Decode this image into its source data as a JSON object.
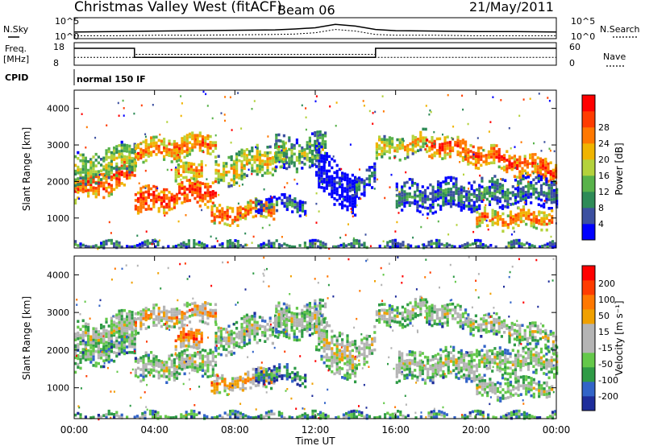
{
  "header": {
    "title": "Christmas Valley West (fitACF)",
    "beam": "Beam 06",
    "date": "21/May/2011"
  },
  "status": {
    "nsky_label": "N.Sky",
    "nsearch_label": "N.Search",
    "freq_label_1": "Freq.",
    "freq_label_2": "[MHz]",
    "nave_label": "Nave",
    "cpid_label": "CPID",
    "cpid_value": "normal 150 IF",
    "noise_ticks": [
      "10^5",
      "10^0"
    ],
    "freq_ticks": [
      18,
      8
    ],
    "nave_ticks": [
      60,
      0
    ]
  },
  "colors": {
    "power": [
      "#0000ff",
      "#3c50a0",
      "#2e8b57",
      "#58b24a",
      "#b4d23c",
      "#f0b400",
      "#ff7800",
      "#ff3c00",
      "#ff0000"
    ],
    "velocity": [
      "#1e2d9b",
      "#3264c8",
      "#2f9b46",
      "#64c84a",
      "#b4b4b4",
      "#b4b4b4",
      "#f0a000",
      "#ff7800",
      "#ff3c00",
      "#ff0000"
    ]
  },
  "chart_data": [
    {
      "type": "line",
      "name": "noise-panel",
      "x": [
        0,
        2,
        4,
        6,
        8,
        10,
        11,
        12,
        13,
        14,
        15,
        16,
        18,
        20,
        22,
        24
      ],
      "series": [
        {
          "name": "N.Sky",
          "values": [
            1.6,
            1.7,
            1.8,
            1.9,
            2.0,
            2.1,
            2.3,
            2.6,
            3.4,
            3.0,
            2.2,
            1.9,
            1.8,
            1.7,
            1.7,
            1.6
          ]
        },
        {
          "name": "N.Search",
          "values": [
            0.7,
            0.7,
            0.8,
            0.8,
            0.9,
            1.0,
            1.1,
            1.4,
            2.2,
            1.8,
            1.0,
            0.8,
            0.8,
            0.7,
            0.7,
            0.7
          ]
        }
      ]
    },
    {
      "type": "line",
      "name": "frequency-panel",
      "x": [
        0,
        3,
        3,
        15,
        15,
        24
      ],
      "series": [
        {
          "name": "Freq.",
          "values": [
            15.5,
            15.5,
            11.5,
            11.5,
            15.5,
            15.5
          ]
        },
        {
          "name": "Nave",
          "values": [
            21,
            21,
            29,
            29,
            21,
            21
          ]
        }
      ]
    },
    {
      "type": "heatmap",
      "name": "power-panel",
      "ylabel": "Slant Range [km]",
      "colorbar_label": "Power [dB]",
      "colorbar_ticks": [
        4,
        8,
        12,
        16,
        20,
        24,
        28
      ],
      "xlim": [
        0,
        24
      ],
      "ylim": [
        180,
        4500
      ],
      "yticks": [
        1000,
        2000,
        3000,
        4000
      ],
      "bands": [
        {
          "t0": 0.0,
          "t1": 3.0,
          "r0": 1800,
          "r1": 2300,
          "dr": 350,
          "level": 0.85
        },
        {
          "t0": 0.0,
          "t1": 3.0,
          "r0": 2300,
          "r1": 2700,
          "dr": 450,
          "level": 0.5
        },
        {
          "t0": 3.0,
          "t1": 7.0,
          "r0": 2850,
          "r1": 3100,
          "dr": 300,
          "level": 0.75
        },
        {
          "t0": 3.0,
          "t1": 7.0,
          "r0": 1500,
          "r1": 1800,
          "dr": 350,
          "level": 0.9
        },
        {
          "t0": 5.0,
          "t1": 6.3,
          "r0": 2250,
          "r1": 2450,
          "dr": 250,
          "level": 0.7
        },
        {
          "t0": 6.8,
          "t1": 10.0,
          "r0": 1050,
          "r1": 1350,
          "dr": 250,
          "level": 0.8
        },
        {
          "t0": 7.0,
          "t1": 10.5,
          "r0": 2300,
          "r1": 2800,
          "dr": 400,
          "level": 0.6
        },
        {
          "t0": 9.0,
          "t1": 11.5,
          "r0": 1450,
          "r1": 1350,
          "dr": 200,
          "level": 0.3
        },
        {
          "t0": 10.0,
          "t1": 12.5,
          "r0": 2800,
          "r1": 2900,
          "dr": 450,
          "level": 0.45
        },
        {
          "t0": 12.0,
          "t1": 14.0,
          "r0": 2500,
          "r1": 1600,
          "dr": 600,
          "level": 0.08
        },
        {
          "t0": 14.0,
          "t1": 15.0,
          "r0": 1900,
          "r1": 2400,
          "dr": 350,
          "level": 0.25
        },
        {
          "t0": 15.0,
          "t1": 17.5,
          "r0": 2900,
          "r1": 3150,
          "dr": 300,
          "level": 0.6
        },
        {
          "t0": 17.5,
          "t1": 24.0,
          "r0": 3100,
          "r1": 2300,
          "dr": 300,
          "level": 0.85
        },
        {
          "t0": 16.0,
          "t1": 24.0,
          "r0": 1600,
          "r1": 1800,
          "dr": 400,
          "level": 0.3
        },
        {
          "t0": 20.0,
          "t1": 23.8,
          "r0": 1000,
          "r1": 1050,
          "dr": 250,
          "level": 0.75
        },
        {
          "t0": 0.0,
          "t1": 24.0,
          "r0": 250,
          "r1": 250,
          "dr": 150,
          "level": 0.3
        }
      ]
    },
    {
      "type": "heatmap",
      "name": "velocity-panel",
      "xlabel": "Time UT",
      "ylabel": "Slant Range [km]",
      "colorbar_label": "Velocity [m s⁻¹]",
      "colorbar_ticks": [
        200,
        100,
        50,
        15,
        -15,
        -50,
        -100,
        -200
      ],
      "xlim": [
        0,
        24
      ],
      "ylim": [
        180,
        4500
      ],
      "xticks": [
        "00:00",
        "04:00",
        "08:00",
        "12:00",
        "16:00",
        "20:00",
        "00:00"
      ],
      "yticks": [
        1000,
        2000,
        3000,
        4000
      ],
      "bands": [
        {
          "t0": 0.0,
          "t1": 3.0,
          "r0": 1800,
          "r1": 2300,
          "dr": 350,
          "level": 0.45
        },
        {
          "t0": 0.0,
          "t1": 3.0,
          "r0": 2300,
          "r1": 2700,
          "dr": 450,
          "level": 0.5
        },
        {
          "t0": 3.0,
          "t1": 7.0,
          "r0": 2850,
          "r1": 3100,
          "dr": 300,
          "level": 0.65
        },
        {
          "t0": 3.0,
          "t1": 7.0,
          "r0": 1500,
          "r1": 1800,
          "dr": 350,
          "level": 0.5
        },
        {
          "t0": 5.0,
          "t1": 6.3,
          "r0": 2250,
          "r1": 2450,
          "dr": 250,
          "level": 0.8
        },
        {
          "t0": 6.8,
          "t1": 10.0,
          "r0": 1050,
          "r1": 1350,
          "dr": 250,
          "level": 0.7
        },
        {
          "t0": 7.0,
          "t1": 10.5,
          "r0": 2300,
          "r1": 2800,
          "dr": 400,
          "level": 0.5
        },
        {
          "t0": 9.0,
          "t1": 11.5,
          "r0": 1450,
          "r1": 1350,
          "dr": 200,
          "level": 0.3
        },
        {
          "t0": 10.0,
          "t1": 12.5,
          "r0": 2800,
          "r1": 2900,
          "dr": 450,
          "level": 0.5
        },
        {
          "t0": 12.0,
          "t1": 14.0,
          "r0": 2500,
          "r1": 1600,
          "dr": 600,
          "level": 0.55
        },
        {
          "t0": 14.0,
          "t1": 15.0,
          "r0": 1900,
          "r1": 2400,
          "dr": 350,
          "level": 0.55
        },
        {
          "t0": 15.0,
          "t1": 17.5,
          "r0": 2900,
          "r1": 3150,
          "dr": 300,
          "level": 0.5
        },
        {
          "t0": 17.5,
          "t1": 24.0,
          "r0": 3100,
          "r1": 2300,
          "dr": 300,
          "level": 0.5
        },
        {
          "t0": 16.0,
          "t1": 24.0,
          "r0": 1600,
          "r1": 1800,
          "dr": 400,
          "level": 0.5
        },
        {
          "t0": 20.0,
          "t1": 23.8,
          "r0": 1000,
          "r1": 1050,
          "dr": 250,
          "level": 0.5
        },
        {
          "t0": 0.0,
          "t1": 24.0,
          "r0": 250,
          "r1": 250,
          "dr": 150,
          "level": 0.35
        }
      ]
    }
  ]
}
